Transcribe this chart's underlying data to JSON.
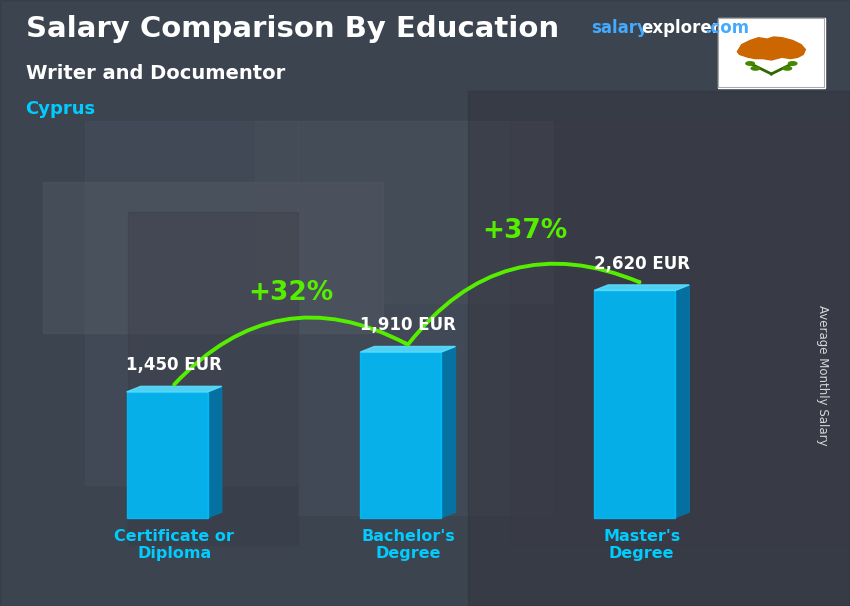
{
  "title": "Salary Comparison By Education",
  "subtitle": "Writer and Documentor",
  "country": "Cyprus",
  "ylabel": "Average Monthly Salary",
  "categories": [
    "Certificate or\nDiploma",
    "Bachelor's\nDegree",
    "Master's\nDegree"
  ],
  "values": [
    1450,
    1910,
    2620
  ],
  "value_labels": [
    "1,450 EUR",
    "1,910 EUR",
    "2,620 EUR"
  ],
  "pct_labels": [
    "+32%",
    "+37%"
  ],
  "bar_color_front": "#00bfff",
  "bar_color_side": "#0077aa",
  "bar_color_top": "#55ddff",
  "arrow_color": "#55ee00",
  "pct_color": "#aaff00",
  "title_color": "#ffffff",
  "subtitle_color": "#ffffff",
  "country_color": "#00ccff",
  "salary_label_color": "#ffffff",
  "xlabel_color": "#00ccff",
  "website_salary_color": "#44aaff",
  "website_explorer_color": "#ffffff",
  "website_com_color": "#44aaff",
  "bg_color": "#5a6a7a",
  "figsize": [
    8.5,
    6.06
  ],
  "dpi": 100
}
